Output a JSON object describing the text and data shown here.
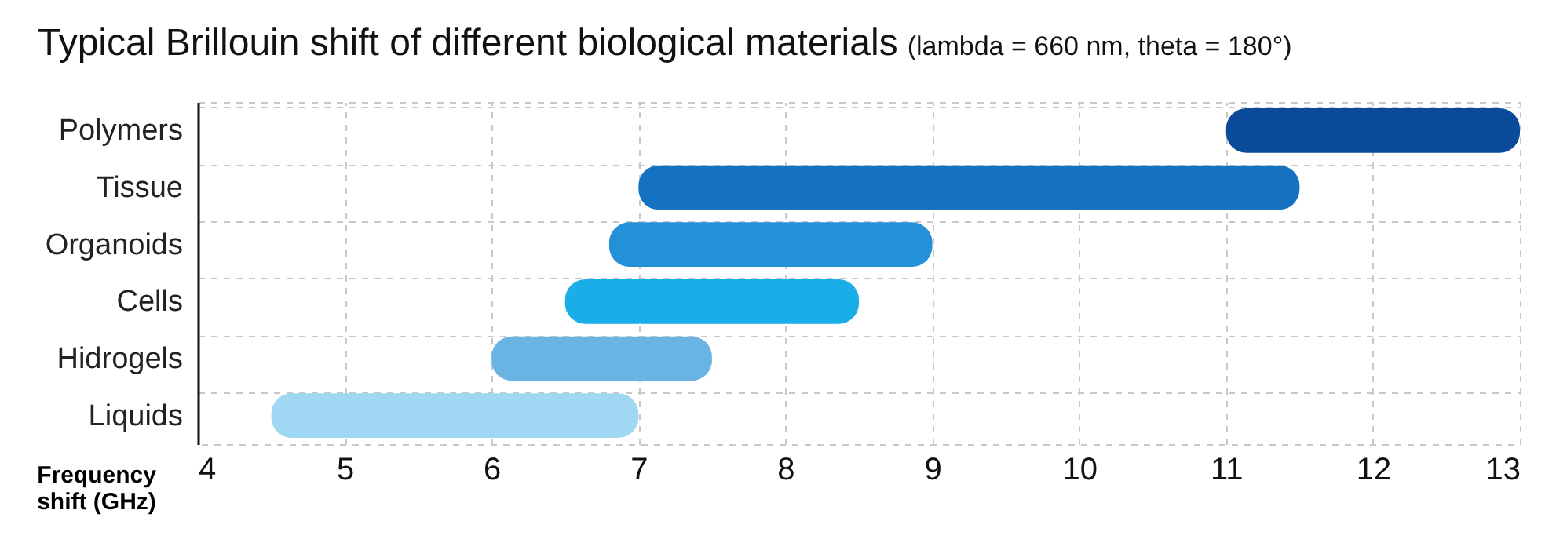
{
  "chart_data": {
    "type": "bar",
    "orientation": "horizontal",
    "title": "Typical Brillouin shift of different biological materials",
    "subtitle": "(lambda = 660 nm, theta = 180°)",
    "xlabel": "Frequency shift (GHz)",
    "categories": [
      "Polymers",
      "Tissue",
      "Organoids",
      "Cells",
      "Hidrogels",
      "Liquids"
    ],
    "base": [
      11,
      7,
      6.8,
      6.5,
      6,
      4.5
    ],
    "values": [
      2,
      4.5,
      2.2,
      2,
      1.5,
      2.5
    ],
    "colors": [
      "#0a4a9a",
      "#1472c0",
      "#2490d8",
      "#1aaee8",
      "#6ab4e4",
      "#a0d8f4"
    ],
    "xlim": [
      4,
      13
    ],
    "xticks": [
      4,
      5,
      6,
      7,
      8,
      9,
      10,
      11,
      12,
      13
    ],
    "grid": true
  }
}
